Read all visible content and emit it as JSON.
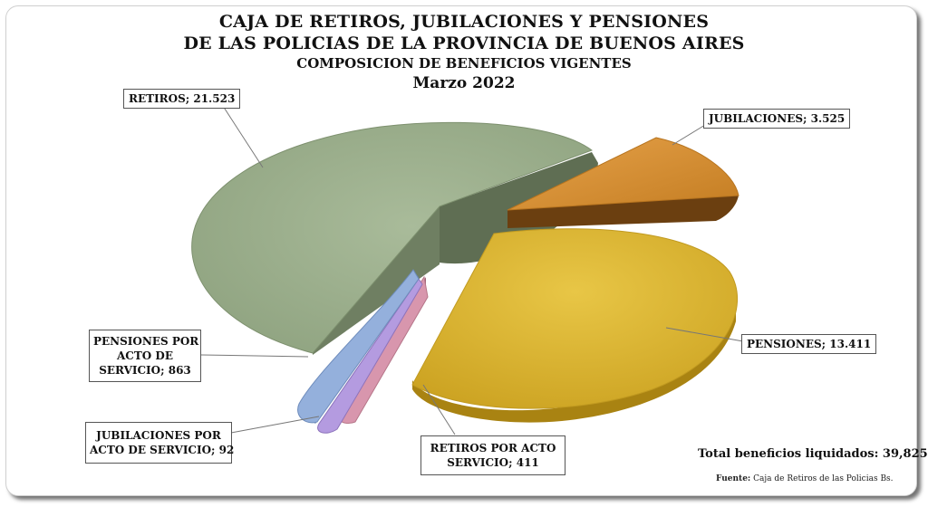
{
  "header": {
    "title_line1": "CAJA DE RETIROS, JUBILACIONES Y PENSIONES",
    "title_line2": "DE LAS POLICIAS DE LA PROVINCIA DE BUENOS AIRES",
    "subtitle": "COMPOSICION  DE BENEFICIOS VIGENTES",
    "period": "Marzo 2022"
  },
  "footer": {
    "total": "Total beneficios liquidados: 39,825",
    "source_label": "Fuente:",
    "source_text": "Caja de Retiros de las Policias  Bs."
  },
  "chart_data": {
    "type": "pie",
    "title": "COMPOSICION  DE BENEFICIOS VIGENTES",
    "subtitle": "Marzo 2022",
    "slices": [
      {
        "name": "RETIROS",
        "value": 21523,
        "label": "RETIROS; 21.523",
        "color": "#97aa88"
      },
      {
        "name": "JUBILACIONES",
        "value": 3525,
        "label": "JUBILACIONES; 3.525",
        "color": "#d99436"
      },
      {
        "name": "PENSIONES",
        "value": 13411,
        "label": "PENSIONES; 13.411",
        "color": "#dab32f"
      },
      {
        "name": "RETIROS POR ACTO SERVICIO",
        "value": 411,
        "label": "RETIROS POR ACTO SERVICIO; 411",
        "color": "#cf8ba2"
      },
      {
        "name": "JUBILACIONES POR ACTO DE SERVICIO",
        "value": 92,
        "label": "JUBILACIONES POR ACTO DE SERVICIO;  92",
        "color": "#a88ccd"
      },
      {
        "name": "PENSIONES POR ACTO DE SERVICIO",
        "value": 863,
        "label": "PENSIONES POR ACTO DE SERVICIO;  863",
        "color": "#8ea6cf"
      }
    ],
    "labels": {
      "retiros": "RETIROS; 21.523",
      "jubilaciones": "JUBILACIONES; 3.525",
      "pensiones": "PENSIONES; 13.411",
      "retiros_acto_line1": "RETIROS POR ACTO",
      "retiros_acto_line2": "SERVICIO; 411",
      "jub_acto_line1": "JUBILACIONES POR",
      "jub_acto_line2": "ACTO DE SERVICIO;  92",
      "pens_acto_line1": "PENSIONES POR",
      "pens_acto_line2": "ACTO DE",
      "pens_acto_line3": "SERVICIO;  863"
    },
    "legend": "none",
    "style": "3d exploded pie"
  }
}
